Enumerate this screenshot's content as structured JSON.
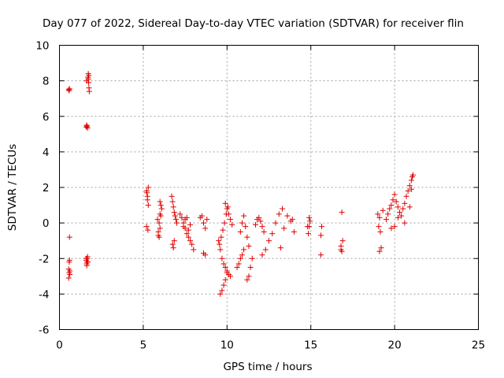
{
  "chart_data": {
    "type": "scatter",
    "title": "Day 077 of 2022, Sidereal Day-to-day VTEC variation (SDTVAR) for receiver flin",
    "xlabel": "GPS time / hours",
    "ylabel": "SDTVAR / TECUs",
    "xlim": [
      0,
      25
    ],
    "ylim": [
      -6,
      10
    ],
    "xticks": [
      "0",
      "5",
      "10",
      "15",
      "20",
      "25"
    ],
    "yticks": [
      "-6",
      "-4",
      "-2",
      "0",
      "2",
      "4",
      "6",
      "8",
      "10"
    ],
    "grid": true,
    "marker": "+",
    "color": "#e00000",
    "series": [
      {
        "name": "SDTVAR",
        "x": [
          0.55,
          0.58,
          0.6,
          0.55,
          0.58,
          0.62,
          0.55,
          0.58,
          0.6,
          0.62,
          0.6,
          1.6,
          1.62,
          1.65,
          1.68,
          1.6,
          1.65,
          1.62,
          1.68,
          1.6,
          1.63,
          1.66,
          1.7,
          1.62,
          1.7,
          1.72,
          1.74,
          1.76,
          1.78,
          1.72,
          1.75,
          5.2,
          5.25,
          5.3,
          5.2,
          5.28,
          5.25,
          5.3,
          5.22,
          5.85,
          5.9,
          5.95,
          6.0,
          6.05,
          6.1,
          5.95,
          6.0,
          5.9,
          6.0,
          6.05,
          6.7,
          6.75,
          6.8,
          6.85,
          6.9,
          6.95,
          7.0,
          6.75,
          6.8,
          6.85,
          7.2,
          7.3,
          7.4,
          7.5,
          7.6,
          7.7,
          7.8,
          7.9,
          8.0,
          7.4,
          7.5,
          7.6,
          7.7,
          7.8,
          8.4,
          8.5,
          8.6,
          8.7,
          8.8,
          8.6,
          8.7,
          9.5,
          9.6,
          9.7,
          9.8,
          9.9,
          10.0,
          10.1,
          10.2,
          9.6,
          9.7,
          9.8,
          9.9,
          10.0,
          9.55,
          9.65,
          9.75,
          9.85,
          9.95,
          10.05,
          9.9,
          10.0,
          10.1,
          10.2,
          10.3,
          10.6,
          10.7,
          10.8,
          10.9,
          11.0,
          10.8,
          10.9,
          11.0,
          11.1,
          11.2,
          11.3,
          11.2,
          11.3,
          11.4,
          11.5,
          11.7,
          11.8,
          11.9,
          12.0,
          12.1,
          12.2,
          12.1,
          12.3,
          12.5,
          12.7,
          12.9,
          13.1,
          13.3,
          13.2,
          13.4,
          13.6,
          13.8,
          14.0,
          13.9,
          14.8,
          14.85,
          14.9,
          14.95,
          14.9,
          15.6,
          15.65,
          15.6,
          16.8,
          16.85,
          16.9,
          16.8,
          16.85,
          19.0,
          19.05,
          19.1,
          19.15,
          19.2,
          19.1,
          19.3,
          19.5,
          19.6,
          19.7,
          19.8,
          19.9,
          20.0,
          20.1,
          20.2,
          20.3,
          20.4,
          20.5,
          20.6,
          20.7,
          20.8,
          20.9,
          21.0,
          21.05,
          21.1,
          20.0,
          20.2,
          19.8,
          20.6,
          20.9,
          21.0
        ],
        "y": [
          7.5,
          7.45,
          7.55,
          -2.6,
          -2.8,
          -2.9,
          -3.1,
          -2.2,
          -2.1,
          -2.7,
          -0.8,
          5.4,
          5.5,
          5.45,
          5.35,
          -2.0,
          -2.2,
          -2.3,
          -1.9,
          -2.1,
          -2.4,
          -2.0,
          -2.2,
          8.0,
          8.2,
          8.4,
          7.9,
          7.6,
          7.4,
          8.1,
          8.3,
          1.8,
          1.5,
          2.0,
          -0.2,
          -0.4,
          1.3,
          1.0,
          1.7,
          0.2,
          -0.5,
          -0.8,
          0.5,
          1.0,
          0.8,
          0.0,
          -0.3,
          -0.7,
          1.2,
          0.4,
          1.5,
          1.2,
          0.9,
          0.6,
          0.4,
          0.2,
          0.0,
          -1.2,
          -1.4,
          -1.0,
          0.5,
          0.3,
          0.0,
          -0.3,
          -0.6,
          -0.8,
          -1.0,
          -1.2,
          -1.5,
          -0.2,
          0.2,
          0.3,
          -0.4,
          -0.1,
          0.3,
          0.4,
          0.0,
          -0.3,
          0.2,
          -1.7,
          -1.8,
          -1.0,
          -1.5,
          -2.0,
          -2.3,
          -2.5,
          -2.7,
          -2.9,
          -3.0,
          -4.0,
          -3.8,
          -3.5,
          -3.2,
          -2.8,
          -1.2,
          -0.8,
          -0.4,
          0.0,
          0.5,
          0.9,
          1.1,
          0.8,
          0.5,
          0.2,
          -0.1,
          -2.5,
          -2.3,
          -2.0,
          -1.8,
          -1.5,
          -0.5,
          0.0,
          0.4,
          -0.2,
          -0.8,
          -1.3,
          -3.2,
          -3.0,
          -2.5,
          -2.0,
          -0.1,
          0.2,
          0.3,
          0.1,
          -0.2,
          -0.5,
          -1.8,
          -1.5,
          -1.0,
          -0.6,
          0.0,
          0.5,
          0.8,
          -1.4,
          -0.3,
          0.4,
          0.1,
          -0.5,
          0.2,
          -0.2,
          -0.6,
          0.3,
          0.1,
          -0.2,
          -1.8,
          -0.2,
          -0.7,
          -1.5,
          0.6,
          -1.0,
          -1.3,
          -1.6,
          0.5,
          -0.2,
          0.3,
          -0.5,
          -1.4,
          -1.6,
          0.7,
          0.2,
          0.5,
          0.8,
          1.0,
          1.3,
          1.6,
          1.2,
          0.9,
          0.6,
          0.4,
          0.8,
          1.1,
          1.5,
          1.8,
          2.1,
          2.4,
          2.6,
          2.7,
          -0.2,
          0.3,
          -0.3,
          0.0,
          0.9,
          1.9
        ]
      }
    ]
  }
}
